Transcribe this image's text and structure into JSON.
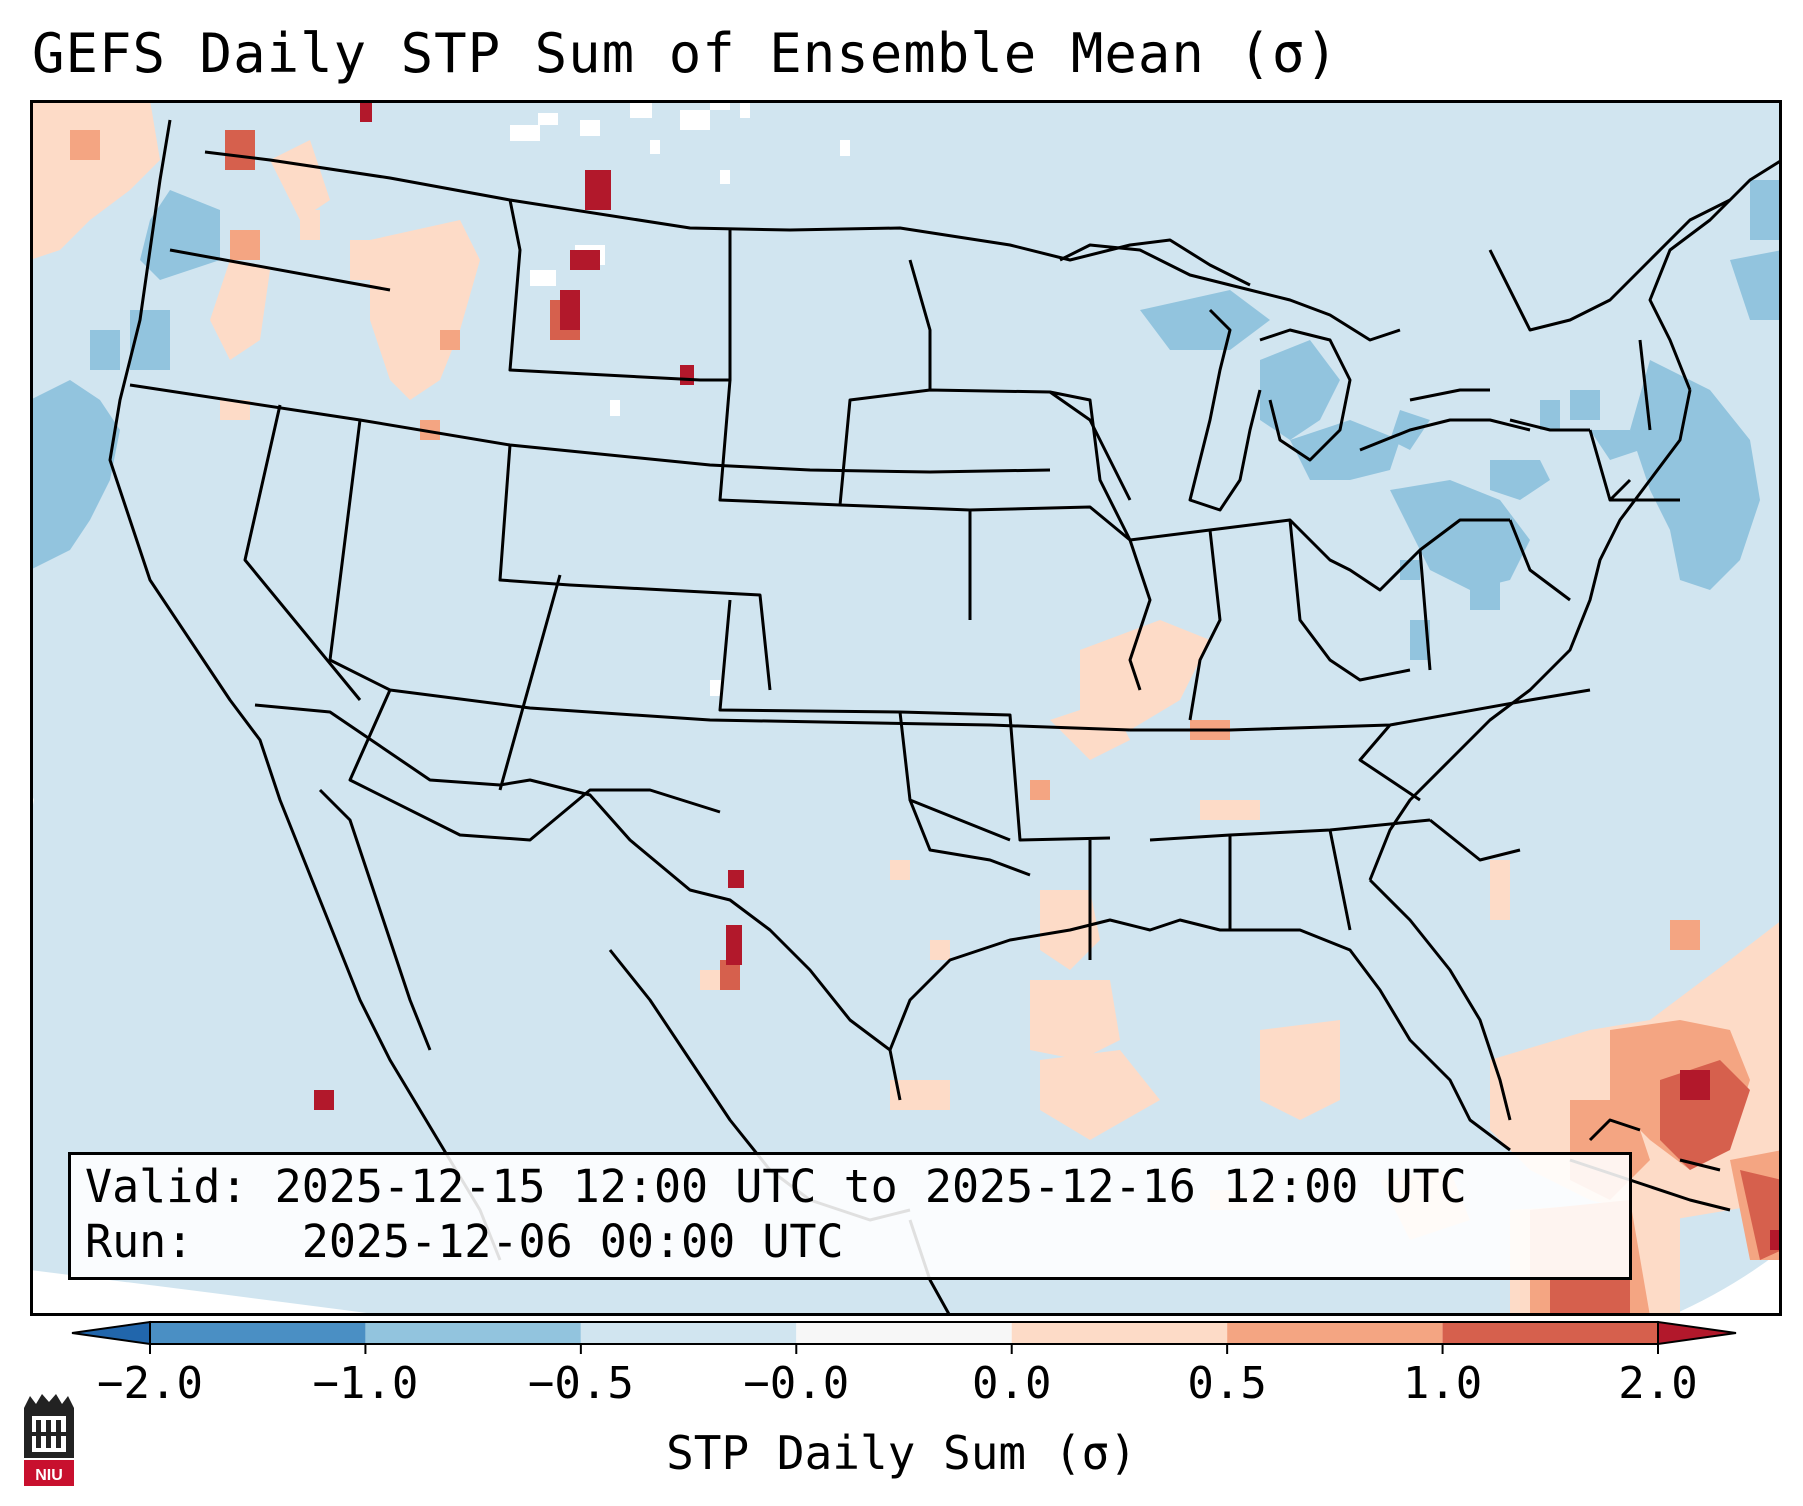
{
  "title": "GEFS Daily STP Sum of Ensemble Mean (σ)",
  "info": {
    "valid_label": "Valid:",
    "valid_value": "2025-12-15 12:00 UTC to 2025-12-16 12:00 UTC",
    "run_label": "Run:",
    "run_value": "2025-12-06 00:00 UTC"
  },
  "colorbar": {
    "label": "STP Daily Sum (σ)",
    "ticks": [
      "−2.0",
      "−1.0",
      "−0.5",
      "−0.0",
      "0.0",
      "0.5",
      "1.0",
      "2.0"
    ],
    "bin_colors": [
      "#4a8fc4",
      "#92c4de",
      "#d1e5f0",
      "#f7f7f7",
      "#fddbc7",
      "#f4a582",
      "#d6604d"
    ],
    "under_color": "#2166ac",
    "over_color": "#b2182b"
  },
  "map": {
    "background_color": "#d1e5f0",
    "outside_color": "#ffffff"
  },
  "logo": {
    "text": "NIU",
    "icon": "niu-tower-icon"
  }
}
